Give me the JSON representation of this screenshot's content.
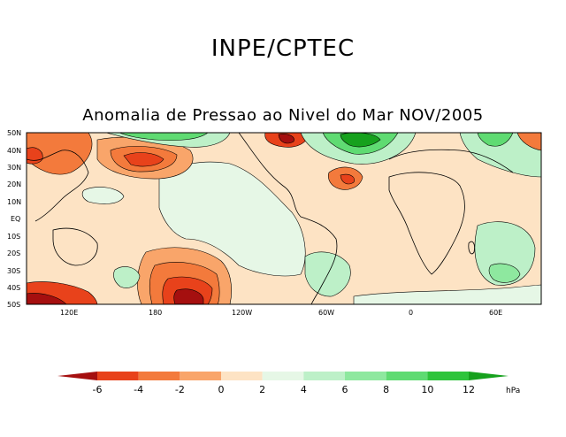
{
  "header": {
    "title": "INPE/CPTEC"
  },
  "map": {
    "title": "Anomalia de Pressao ao Nivel do Mar NOV/2005",
    "latitude_labels": [
      "50N",
      "40N",
      "30N",
      "20N",
      "10N",
      "EQ",
      "10S",
      "20S",
      "30S",
      "40S",
      "50S"
    ],
    "longitude_labels": [
      "120E",
      "180",
      "120W",
      "60W",
      "0",
      "60E"
    ]
  },
  "colorbar": {
    "unit": "hPa",
    "tick_labels": [
      "-6",
      "-4",
      "-2",
      "0",
      "2",
      "4",
      "6",
      "8",
      "10",
      "12"
    ],
    "colors": [
      "#a50f0f",
      "#e8421b",
      "#f37a3c",
      "#f9a56a",
      "#fde3c4",
      "#e6f7e6",
      "#bdf0c8",
      "#8ee89f",
      "#5fdb72",
      "#2ec43b",
      "#16a11d"
    ]
  },
  "legend_colors": {
    "land_warm": "#fde3c4",
    "ocean_neutral": "#e6f7e6",
    "low_weak": "#f9a56a",
    "low_moderate": "#f37a3c",
    "low_strong": "#e8421b",
    "low_extreme": "#a50f0f",
    "high_weak": "#bdf0c8",
    "high_moderate": "#8ee89f",
    "high_strong": "#2ec43b"
  }
}
